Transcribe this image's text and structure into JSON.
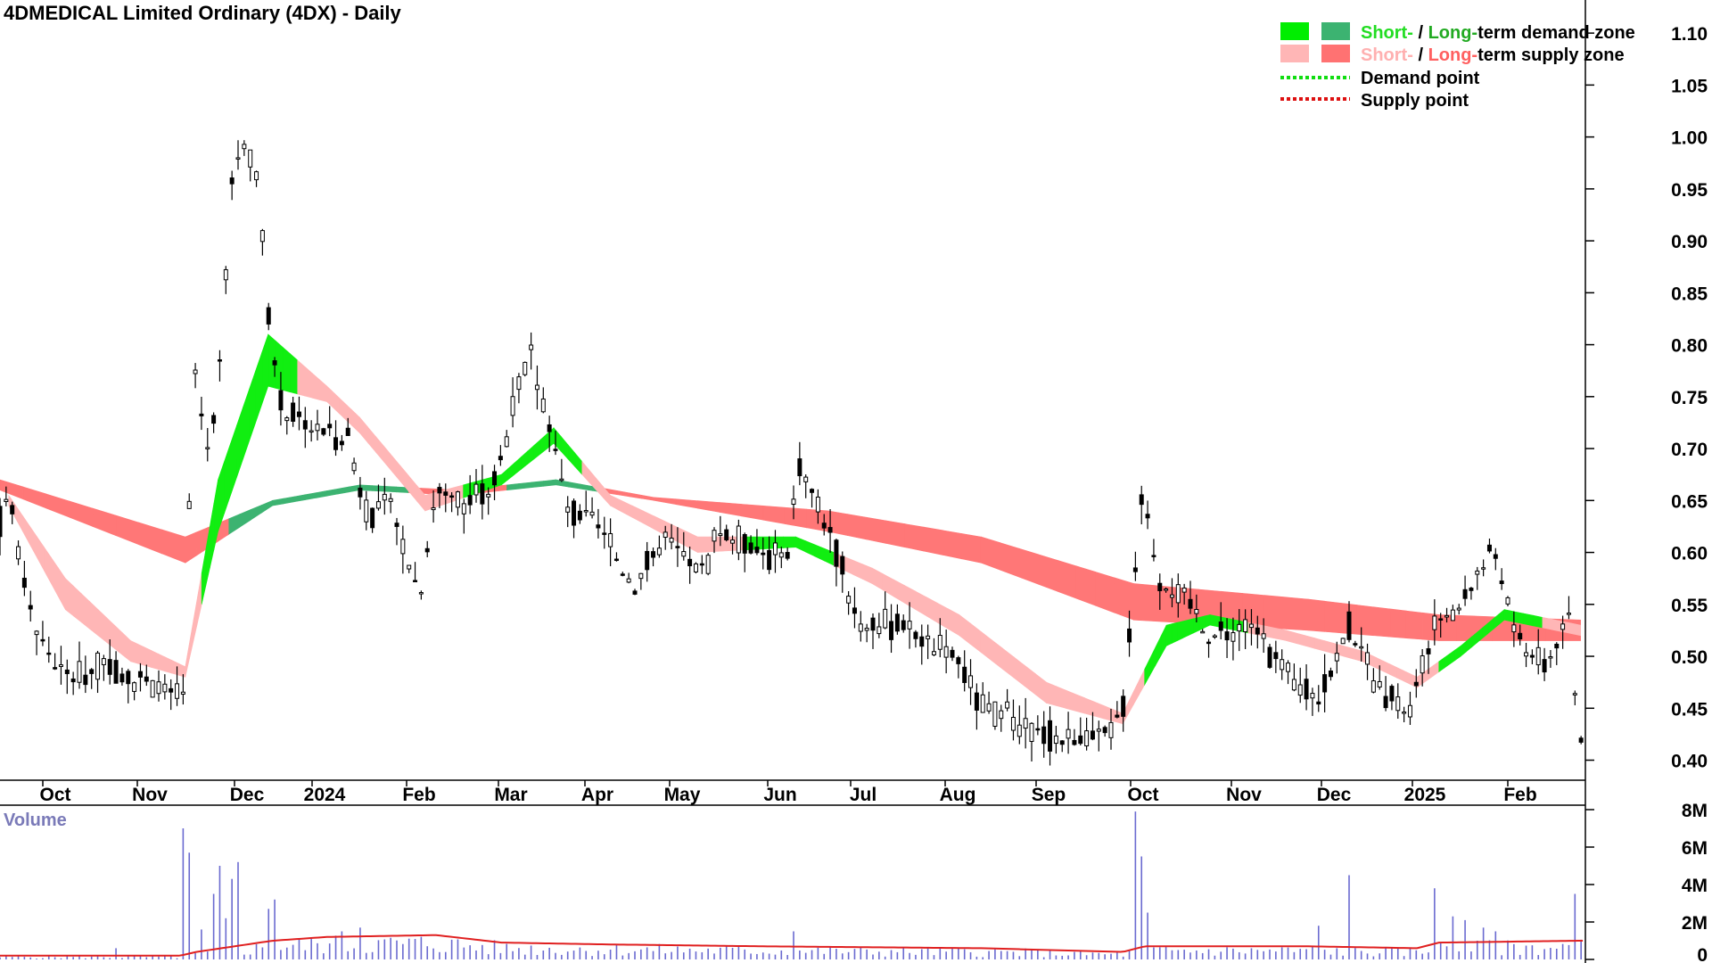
{
  "chart_data": {
    "type": "candlestick",
    "title": "4DMEDICAL Limited Ordinary (4DX) - Daily",
    "price_axis": {
      "ylim": [
        0.385,
        1.125
      ],
      "ticks": [
        "1.10",
        "1.05",
        "1.00",
        "0.95",
        "0.90",
        "0.85",
        "0.80",
        "0.75",
        "0.70",
        "0.65",
        "0.60",
        "0.55",
        "0.50",
        "0.45",
        "0.40"
      ]
    },
    "x_axis": {
      "labels": [
        "Oct",
        "Nov",
        "Dec",
        "2024",
        "Feb",
        "Mar",
        "Apr",
        "May",
        "Jun",
        "Jul",
        "Aug",
        "Sep",
        "Oct",
        "Nov",
        "Dec",
        "2025",
        "Feb"
      ]
    },
    "legend": [
      {
        "prefix_colored": "Short-",
        "prefix_color": "#22dd22",
        "sep": " / ",
        "second_colored": "Long-",
        "second_color": "#22aa22",
        "rest": "term demand zone",
        "swatches": [
          "#00ee00",
          "#3cb371"
        ]
      },
      {
        "prefix_colored": "Short-",
        "prefix_color": "#ffb0b0",
        "sep": " / ",
        "second_colored": "Long-",
        "second_color": "#ff6060",
        "rest": "term supply zone",
        "swatches": [
          "#ffb6b6",
          "#ff7272"
        ]
      },
      {
        "label": "Demand point",
        "line_color": "#11dd11"
      },
      {
        "label": "Supply point",
        "line_color": "#dd1111"
      }
    ],
    "volume_panel": {
      "title": "Volume",
      "ticks": [
        "8M",
        "6M",
        "4M",
        "2M",
        "0"
      ],
      "ylim": [
        0,
        8000000
      ]
    },
    "close_series": [
      {
        "t": 0,
        "v": 0.63
      },
      {
        "t": 8,
        "v": 0.66
      },
      {
        "t": 20,
        "v": 0.58
      },
      {
        "t": 35,
        "v": 0.52
      },
      {
        "t": 60,
        "v": 0.48
      },
      {
        "t": 100,
        "v": 0.49
      },
      {
        "t": 140,
        "v": 0.47
      },
      {
        "t": 168,
        "v": 0.46
      },
      {
        "t": 178,
        "v": 0.78
      },
      {
        "t": 190,
        "v": 0.7
      },
      {
        "t": 200,
        "v": 0.75
      },
      {
        "t": 212,
        "v": 0.95
      },
      {
        "t": 222,
        "v": 1.0
      },
      {
        "t": 238,
        "v": 0.95
      },
      {
        "t": 245,
        "v": 0.83
      },
      {
        "t": 258,
        "v": 0.74
      },
      {
        "t": 290,
        "v": 0.72
      },
      {
        "t": 320,
        "v": 0.71
      },
      {
        "t": 335,
        "v": 0.64
      },
      {
        "t": 360,
        "v": 0.64
      },
      {
        "t": 385,
        "v": 0.56
      },
      {
        "t": 400,
        "v": 0.66
      },
      {
        "t": 430,
        "v": 0.65
      },
      {
        "t": 455,
        "v": 0.67
      },
      {
        "t": 475,
        "v": 0.76
      },
      {
        "t": 488,
        "v": 0.79
      },
      {
        "t": 505,
        "v": 0.72
      },
      {
        "t": 520,
        "v": 0.64
      },
      {
        "t": 545,
        "v": 0.63
      },
      {
        "t": 580,
        "v": 0.57
      },
      {
        "t": 610,
        "v": 0.61
      },
      {
        "t": 645,
        "v": 0.58
      },
      {
        "t": 660,
        "v": 0.62
      },
      {
        "t": 700,
        "v": 0.6
      },
      {
        "t": 722,
        "v": 0.59
      },
      {
        "t": 732,
        "v": 0.69
      },
      {
        "t": 760,
        "v": 0.62
      },
      {
        "t": 790,
        "v": 0.53
      },
      {
        "t": 830,
        "v": 0.53
      },
      {
        "t": 875,
        "v": 0.5
      },
      {
        "t": 900,
        "v": 0.45
      },
      {
        "t": 940,
        "v": 0.43
      },
      {
        "t": 980,
        "v": 0.42
      },
      {
        "t": 1015,
        "v": 0.42
      },
      {
        "t": 1030,
        "v": 0.45
      },
      {
        "t": 1048,
        "v": 0.66
      },
      {
        "t": 1062,
        "v": 0.58
      },
      {
        "t": 1090,
        "v": 0.55
      },
      {
        "t": 1115,
        "v": 0.52
      },
      {
        "t": 1150,
        "v": 0.53
      },
      {
        "t": 1180,
        "v": 0.48
      },
      {
        "t": 1210,
        "v": 0.46
      },
      {
        "t": 1238,
        "v": 0.53
      },
      {
        "t": 1265,
        "v": 0.46
      },
      {
        "t": 1295,
        "v": 0.45
      },
      {
        "t": 1315,
        "v": 0.53
      },
      {
        "t": 1330,
        "v": 0.53
      },
      {
        "t": 1355,
        "v": 0.58
      },
      {
        "t": 1372,
        "v": 0.6
      },
      {
        "t": 1390,
        "v": 0.52
      },
      {
        "t": 1418,
        "v": 0.49
      },
      {
        "t": 1440,
        "v": 0.54
      },
      {
        "t": 1445,
        "v": 0.46
      },
      {
        "t": 1450,
        "v": 0.42
      }
    ],
    "short_term_zone": [
      {
        "t": 8,
        "a": 0.645,
        "b": 0.655,
        "kind": "supply"
      },
      {
        "t": 60,
        "a": 0.545,
        "b": 0.575,
        "kind": "supply"
      },
      {
        "t": 120,
        "a": 0.495,
        "b": 0.515,
        "kind": "supply"
      },
      {
        "t": 170,
        "a": 0.48,
        "b": 0.49,
        "kind": "supply"
      },
      {
        "t": 200,
        "a": 0.62,
        "b": 0.67,
        "kind": "demand"
      },
      {
        "t": 246,
        "a": 0.76,
        "b": 0.81,
        "kind": "demand"
      },
      {
        "t": 300,
        "a": 0.745,
        "b": 0.76,
        "kind": "supply"
      },
      {
        "t": 330,
        "a": 0.715,
        "b": 0.73,
        "kind": "supply"
      },
      {
        "t": 390,
        "a": 0.64,
        "b": 0.655,
        "kind": "supply"
      },
      {
        "t": 460,
        "a": 0.665,
        "b": 0.675,
        "kind": "demand"
      },
      {
        "t": 508,
        "a": 0.705,
        "b": 0.72,
        "kind": "demand"
      },
      {
        "t": 560,
        "a": 0.645,
        "b": 0.655,
        "kind": "supply"
      },
      {
        "t": 640,
        "a": 0.6,
        "b": 0.615,
        "kind": "supply"
      },
      {
        "t": 730,
        "a": 0.605,
        "b": 0.615,
        "kind": "demand"
      },
      {
        "t": 800,
        "a": 0.57,
        "b": 0.585,
        "kind": "supply"
      },
      {
        "t": 880,
        "a": 0.52,
        "b": 0.54,
        "kind": "supply"
      },
      {
        "t": 960,
        "a": 0.455,
        "b": 0.475,
        "kind": "supply"
      },
      {
        "t": 1030,
        "a": 0.435,
        "b": 0.445,
        "kind": "supply"
      },
      {
        "t": 1070,
        "a": 0.51,
        "b": 0.53,
        "kind": "demand"
      },
      {
        "t": 1110,
        "a": 0.53,
        "b": 0.54,
        "kind": "demand"
      },
      {
        "t": 1180,
        "a": 0.515,
        "b": 0.525,
        "kind": "supply"
      },
      {
        "t": 1250,
        "a": 0.495,
        "b": 0.505,
        "kind": "supply"
      },
      {
        "t": 1300,
        "a": 0.47,
        "b": 0.48,
        "kind": "supply"
      },
      {
        "t": 1340,
        "a": 0.5,
        "b": 0.51,
        "kind": "demand"
      },
      {
        "t": 1380,
        "a": 0.535,
        "b": 0.545,
        "kind": "demand"
      },
      {
        "t": 1450,
        "a": 0.52,
        "b": 0.53,
        "kind": "supply"
      }
    ],
    "long_term_zone": [
      {
        "t": 0,
        "a": 0.66,
        "b": 0.67,
        "kind": "supply"
      },
      {
        "t": 170,
        "a": 0.59,
        "b": 0.615,
        "kind": "supply"
      },
      {
        "t": 250,
        "a": 0.645,
        "b": 0.65,
        "kind": "demand"
      },
      {
        "t": 330,
        "a": 0.66,
        "b": 0.665,
        "kind": "demand"
      },
      {
        "t": 420,
        "a": 0.655,
        "b": 0.66,
        "kind": "supply"
      },
      {
        "t": 510,
        "a": 0.665,
        "b": 0.67,
        "kind": "demand"
      },
      {
        "t": 600,
        "a": 0.65,
        "b": 0.653,
        "kind": "supply"
      },
      {
        "t": 760,
        "a": 0.62,
        "b": 0.64,
        "kind": "supply"
      },
      {
        "t": 900,
        "a": 0.59,
        "b": 0.615,
        "kind": "supply"
      },
      {
        "t": 1040,
        "a": 0.535,
        "b": 0.57,
        "kind": "supply"
      },
      {
        "t": 1200,
        "a": 0.525,
        "b": 0.555,
        "kind": "supply"
      },
      {
        "t": 1320,
        "a": 0.515,
        "b": 0.54,
        "kind": "supply"
      },
      {
        "t": 1450,
        "a": 0.515,
        "b": 0.535,
        "kind": "supply"
      }
    ],
    "volume_events": [
      {
        "t": 105,
        "v": 600000
      },
      {
        "t": 170,
        "v": 7000000
      },
      {
        "t": 176,
        "v": 5700000
      },
      {
        "t": 182,
        "v": 1600000
      },
      {
        "t": 195,
        "v": 3500000
      },
      {
        "t": 201,
        "v": 5000000
      },
      {
        "t": 206,
        "v": 2200000
      },
      {
        "t": 214,
        "v": 4300000
      },
      {
        "t": 220,
        "v": 5200000
      },
      {
        "t": 246,
        "v": 2700000
      },
      {
        "t": 252,
        "v": 3200000
      },
      {
        "t": 316,
        "v": 1500000
      },
      {
        "t": 330,
        "v": 1700000
      },
      {
        "t": 730,
        "v": 1500000
      },
      {
        "t": 1043,
        "v": 7900000
      },
      {
        "t": 1049,
        "v": 5500000
      },
      {
        "t": 1054,
        "v": 2500000
      },
      {
        "t": 1210,
        "v": 1800000
      },
      {
        "t": 1235,
        "v": 4500000
      },
      {
        "t": 1318,
        "v": 3800000
      },
      {
        "t": 1335,
        "v": 2300000
      },
      {
        "t": 1346,
        "v": 2100000
      },
      {
        "t": 1360,
        "v": 1700000
      },
      {
        "t": 1370,
        "v": 1500000
      },
      {
        "t": 1445,
        "v": 3500000
      }
    ],
    "volume_average": [
      {
        "t": 0,
        "v": 200000
      },
      {
        "t": 165,
        "v": 200000
      },
      {
        "t": 180,
        "v": 400000
      },
      {
        "t": 250,
        "v": 1000000
      },
      {
        "t": 300,
        "v": 1200000
      },
      {
        "t": 400,
        "v": 1300000
      },
      {
        "t": 460,
        "v": 900000
      },
      {
        "t": 560,
        "v": 800000
      },
      {
        "t": 700,
        "v": 700000
      },
      {
        "t": 900,
        "v": 600000
      },
      {
        "t": 1030,
        "v": 400000
      },
      {
        "t": 1050,
        "v": 700000
      },
      {
        "t": 1200,
        "v": 700000
      },
      {
        "t": 1300,
        "v": 600000
      },
      {
        "t": 1320,
        "v": 900000
      },
      {
        "t": 1450,
        "v": 1000000
      }
    ]
  }
}
